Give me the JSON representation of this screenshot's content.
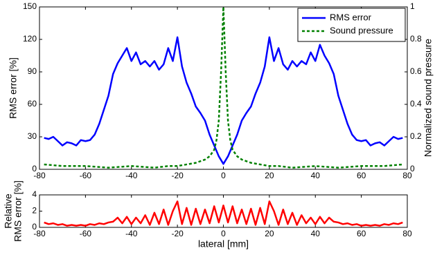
{
  "chart_data": [
    {
      "type": "line",
      "ylabel": "RMS error [%]",
      "y2label": "Normalized sound pressure",
      "xlim": [
        -80,
        80
      ],
      "xticks": [
        -80,
        -60,
        -40,
        -20,
        0,
        20,
        40,
        60,
        80
      ],
      "ylim": [
        0,
        150
      ],
      "yticks": [
        0,
        30,
        60,
        90,
        120,
        150
      ],
      "y2lim": [
        0,
        1
      ],
      "y2ticks": [
        0,
        0.2,
        0.4,
        0.6,
        0.8,
        1
      ],
      "legend": "upper right",
      "series": [
        {
          "name": "RMS error",
          "color": "#0000ff",
          "style": "solid",
          "axis": "y",
          "x": [
            -78,
            -76,
            -74,
            -72,
            -70,
            -68,
            -66,
            -64,
            -62,
            -60,
            -58,
            -56,
            -54,
            -52,
            -50,
            -48,
            -46,
            -44,
            -42,
            -40,
            -38,
            -36,
            -34,
            -32,
            -30,
            -28,
            -26,
            -24,
            -22,
            -20,
            -18,
            -16,
            -14,
            -12,
            -10,
            -8,
            -6,
            -4,
            -2,
            0,
            2,
            4,
            6,
            8,
            10,
            12,
            14,
            16,
            18,
            20,
            22,
            24,
            26,
            28,
            30,
            32,
            34,
            36,
            38,
            40,
            42,
            44,
            46,
            48,
            50,
            52,
            54,
            56,
            58,
            60,
            62,
            64,
            66,
            68,
            70,
            72,
            74,
            76,
            78
          ],
          "values": [
            29,
            28,
            30,
            26,
            22,
            25,
            24,
            22,
            27,
            26,
            27,
            32,
            42,
            55,
            68,
            88,
            98,
            105,
            112,
            100,
            108,
            97,
            100,
            95,
            100,
            92,
            97,
            112,
            100,
            122,
            95,
            80,
            70,
            58,
            52,
            45,
            32,
            22,
            12,
            5,
            12,
            22,
            32,
            45,
            52,
            58,
            70,
            80,
            95,
            122,
            100,
            112,
            97,
            92,
            100,
            95,
            100,
            97,
            108,
            100,
            115,
            105,
            98,
            88,
            68,
            55,
            42,
            32,
            27,
            26,
            27,
            22,
            24,
            25,
            22,
            26,
            30,
            28,
            29
          ]
        },
        {
          "name": "Sound pressure",
          "color": "#008000",
          "style": "dashed",
          "axis": "y2",
          "x": [
            -78,
            -70,
            -60,
            -50,
            -40,
            -30,
            -24,
            -20,
            -16,
            -12,
            -8,
            -6,
            -4,
            -3,
            -2,
            -1,
            0,
            1,
            2,
            3,
            4,
            6,
            8,
            12,
            16,
            20,
            24,
            30,
            40,
            50,
            60,
            70,
            78
          ],
          "values": [
            0.03,
            0.02,
            0.02,
            0.01,
            0.02,
            0.01,
            0.02,
            0.02,
            0.03,
            0.04,
            0.06,
            0.08,
            0.12,
            0.18,
            0.3,
            0.6,
            1,
            0.6,
            0.3,
            0.18,
            0.12,
            0.08,
            0.06,
            0.04,
            0.03,
            0.02,
            0.02,
            0.01,
            0.02,
            0.01,
            0.02,
            0.02,
            0.03
          ]
        }
      ]
    },
    {
      "type": "line",
      "xlabel": "lateral [mm]",
      "ylabel": [
        "Relative",
        "RMS error [%]"
      ],
      "xlim": [
        -80,
        80
      ],
      "xticks": [
        -80,
        -60,
        -40,
        -20,
        0,
        20,
        40,
        60,
        80
      ],
      "ylim": [
        0,
        4
      ],
      "yticks": [
        0,
        2,
        4
      ],
      "series": [
        {
          "color": "#ff0000",
          "style": "solid",
          "axis": "y",
          "x": [
            -78,
            -76,
            -74,
            -72,
            -70,
            -68,
            -66,
            -64,
            -62,
            -60,
            -58,
            -56,
            -54,
            -52,
            -50,
            -48,
            -46,
            -44,
            -42,
            -40,
            -38,
            -36,
            -34,
            -32,
            -30,
            -28,
            -26,
            -24,
            -22,
            -20,
            -18,
            -16,
            -14,
            -12,
            -10,
            -8,
            -6,
            -4,
            -2,
            0,
            2,
            4,
            6,
            8,
            10,
            12,
            14,
            16,
            18,
            20,
            22,
            24,
            26,
            28,
            30,
            32,
            34,
            36,
            38,
            40,
            42,
            44,
            46,
            48,
            50,
            52,
            54,
            56,
            58,
            60,
            62,
            64,
            66,
            68,
            70,
            72,
            74,
            76,
            78
          ],
          "values": [
            0.6,
            0.4,
            0.5,
            0.3,
            0.4,
            0.2,
            0.3,
            0.2,
            0.3,
            0.2,
            0.4,
            0.3,
            0.5,
            0.4,
            0.6,
            0.7,
            1.2,
            0.5,
            1.3,
            0.4,
            1.2,
            0.5,
            1.5,
            0.3,
            1.8,
            0.4,
            2.2,
            0.3,
            2.0,
            3.2,
            0.4,
            2.4,
            0.3,
            2.3,
            0.4,
            2.2,
            0.5,
            2.6,
            0.6,
            2.7,
            0.6,
            2.6,
            0.5,
            2.2,
            0.4,
            2.3,
            0.3,
            2.4,
            0.4,
            3.2,
            2.0,
            0.3,
            2.2,
            0.4,
            1.8,
            0.3,
            1.5,
            0.5,
            1.2,
            0.4,
            1.3,
            0.5,
            1.2,
            0.7,
            0.6,
            0.4,
            0.5,
            0.3,
            0.4,
            0.2,
            0.3,
            0.2,
            0.3,
            0.2,
            0.4,
            0.3,
            0.5,
            0.4,
            0.6
          ]
        }
      ]
    }
  ]
}
